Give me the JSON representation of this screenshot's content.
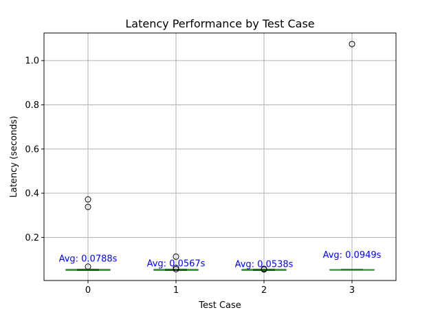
{
  "chart_data": {
    "type": "box",
    "title": "Latency Performance by Test Case",
    "xlabel": "Test Case",
    "ylabel": "Latency (seconds)",
    "categories": [
      "0",
      "1",
      "2",
      "3"
    ],
    "ylim": [
      0.005,
      1.125
    ],
    "yticks": [
      0.2,
      0.4,
      0.6,
      0.8,
      1.0
    ],
    "ytick_labels": [
      "0.2",
      "0.4",
      "0.6",
      "0.8",
      "1.0"
    ],
    "grid": true,
    "boxes": [
      {
        "category": "0",
        "q1": 0.051,
        "median": 0.053,
        "q3": 0.055,
        "whisker_low": 0.05,
        "whisker_high": 0.056,
        "outliers": [
          0.372,
          0.338,
          0.068
        ]
      },
      {
        "category": "1",
        "q1": 0.051,
        "median": 0.053,
        "q3": 0.055,
        "whisker_low": 0.05,
        "whisker_high": 0.056,
        "outliers": [
          0.113,
          0.062,
          0.056
        ]
      },
      {
        "category": "2",
        "q1": 0.051,
        "median": 0.053,
        "q3": 0.055,
        "whisker_low": 0.05,
        "whisker_high": 0.056,
        "outliers": [
          0.058,
          0.055
        ]
      },
      {
        "category": "3",
        "q1": 0.053,
        "median": 0.054,
        "q3": 0.055,
        "whisker_low": 0.052,
        "whisker_high": 0.056,
        "outliers": [
          1.075
        ]
      }
    ],
    "annotations": [
      {
        "category": "0",
        "text": "Avg: 0.0788s",
        "y": 0.0788
      },
      {
        "category": "1",
        "text": "Avg: 0.0567s",
        "y": 0.0567
      },
      {
        "category": "2",
        "text": "Avg: 0.0538s",
        "y": 0.0538
      },
      {
        "category": "3",
        "text": "Avg: 0.0949s",
        "y": 0.0949
      }
    ],
    "colors": {
      "box": "#000000",
      "median": "#2ca02c",
      "grid": "#b0b0b0",
      "annotation": "#0000ff",
      "outlier_edge": "#000000"
    }
  }
}
